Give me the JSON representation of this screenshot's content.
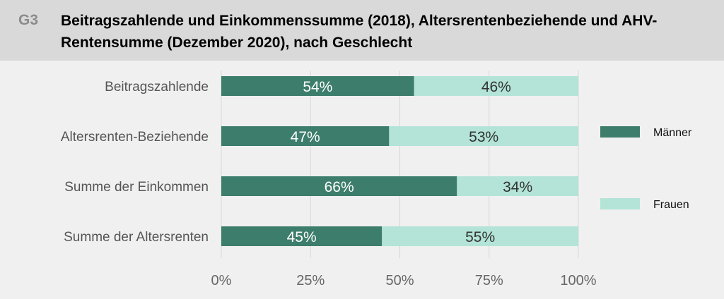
{
  "figure_id": "G3",
  "title": "Beitragszahlende und Einkommenssumme (2018), Altersrentenbeziehende und AHV-Rentensumme (Dezember 2020), nach Geschlecht",
  "chart_data": {
    "type": "bar",
    "orientation": "horizontal",
    "stacked": true,
    "categories": [
      "Beitragszahlende",
      "Altersrenten-Beziehende",
      "Summe der Einkommen",
      "Summe der Altersrenten"
    ],
    "series": [
      {
        "name": "Männer",
        "values": [
          54,
          47,
          66,
          45
        ],
        "labels": [
          "54%",
          "47%",
          "66%",
          "45%"
        ],
        "color": "#3d7d6b"
      },
      {
        "name": "Frauen",
        "values": [
          46,
          53,
          34,
          55
        ],
        "labels": [
          "46%",
          "53%",
          "34%",
          "55%"
        ],
        "color": "#b3e4d7"
      }
    ],
    "xlim": [
      0,
      100
    ],
    "x_ticks": [
      "0%",
      "25%",
      "50%",
      "75%",
      "100%"
    ],
    "grid": true,
    "legend_position": "right"
  }
}
